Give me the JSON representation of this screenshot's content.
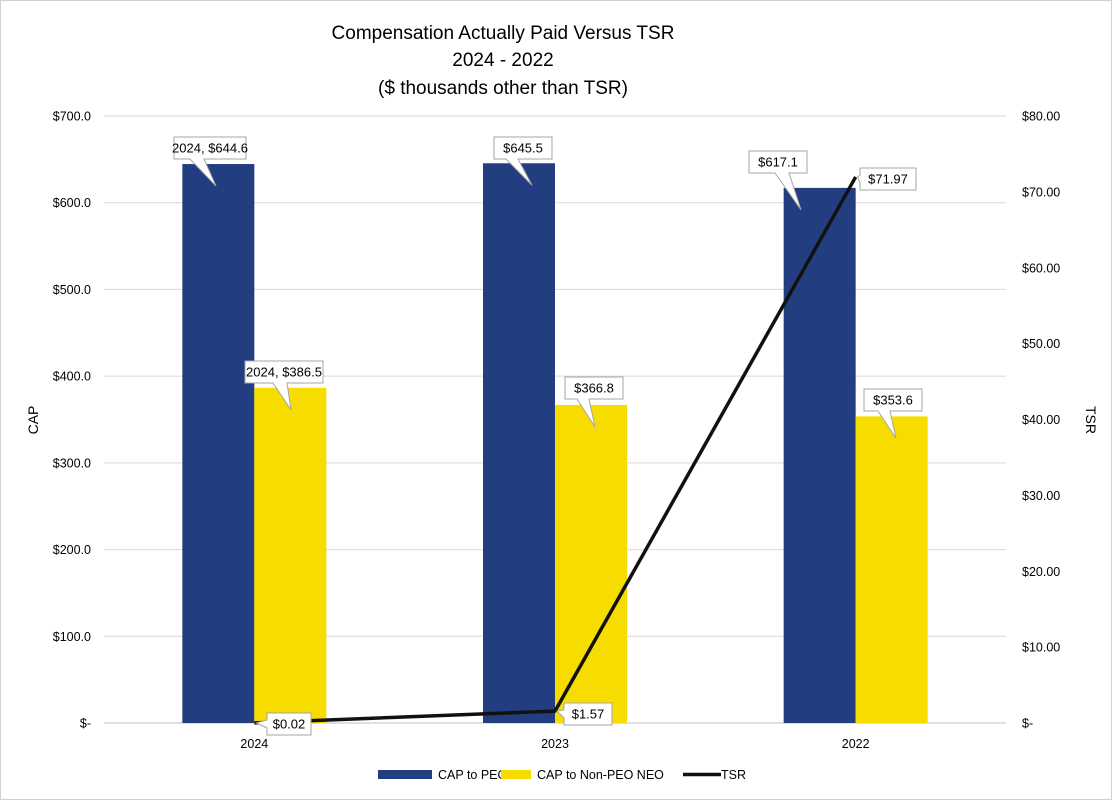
{
  "chart_data": {
    "type": "bar",
    "title": "Compensation Actually Paid Versus TSR",
    "subtitle_line1": "2024 - 2022",
    "subtitle_line2": "($ thousands other than TSR)",
    "categories": [
      "2024",
      "2023",
      "2022"
    ],
    "series": [
      {
        "name": "CAP to PEO",
        "type": "bar",
        "axis": "left",
        "color": "#233E80",
        "values": [
          644.6,
          645.5,
          617.1
        ]
      },
      {
        "name": "CAP to Non-PEO NEO",
        "type": "bar",
        "axis": "left",
        "color": "#F7DC00",
        "values": [
          386.5,
          366.8,
          353.6
        ]
      },
      {
        "name": "TSR",
        "type": "line",
        "axis": "right",
        "color": "#111111",
        "values": [
          0.02,
          1.57,
          71.97
        ]
      }
    ],
    "ylabel": "CAP",
    "y2label": "TSR",
    "ylim": [
      0,
      700
    ],
    "y2lim": [
      0,
      80
    ],
    "yticks": [
      "$-",
      "$100.0",
      "$200.0",
      "$300.0",
      "$400.0",
      "$500.0",
      "$600.0",
      "$700.0"
    ],
    "y2ticks": [
      "$-",
      "$10.00",
      "$20.00",
      "$30.00",
      "$40.00",
      "$50.00",
      "$60.00",
      "$70.00",
      "$80.00"
    ],
    "data_labels": {
      "CAP to PEO": [
        "2024,  $644.6",
        "$645.5",
        "$617.1"
      ],
      "CAP to Non-PEO NEO": [
        "2024,  $386.5",
        "$366.8",
        "$353.6"
      ],
      "TSR": [
        "$0.02",
        "$1.57",
        "$71.97"
      ]
    },
    "grid": true,
    "legend": "bottom"
  }
}
